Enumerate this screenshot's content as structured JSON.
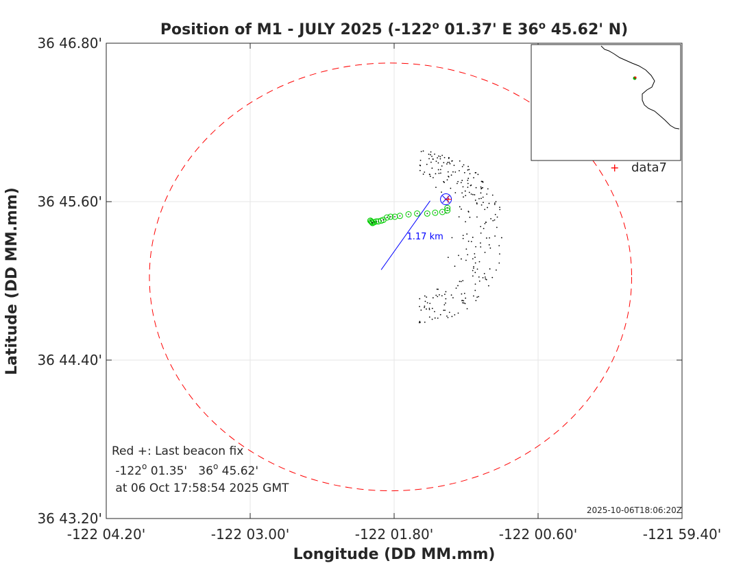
{
  "chart_data": {
    "type": "scatter",
    "title_main": "Position of M1 - JULY 2025 (-122",
    "title_lon_min": " 01.37' E  36",
    "title_lat_min": " 45.62' N)",
    "degree_mark": "o",
    "xlabel": "Longitude (DD MM.mm)",
    "ylabel": "Latitude (DD MM.mm)",
    "xlim": [
      -122.07,
      -121.99
    ],
    "ylim": [
      36.72,
      36.78
    ],
    "grid": true,
    "x_ticks": [
      {
        "value": -122.07,
        "label": "-122 04.20'"
      },
      {
        "value": -122.05,
        "label": "-122 03.00'"
      },
      {
        "value": -122.03,
        "label": "-122 01.80'"
      },
      {
        "value": -122.01,
        "label": "-122 00.60'"
      },
      {
        "value": -121.99,
        "label": "-121 59.40'"
      }
    ],
    "y_ticks": [
      {
        "value": 36.72,
        "label": "36 43.20'"
      },
      {
        "value": 36.74,
        "label": "36 44.40'"
      },
      {
        "value": 36.76,
        "label": "36 45.60'"
      },
      {
        "value": 36.78,
        "label": "36 46.80'"
      }
    ],
    "watch_circle": {
      "center": [
        -122.0305,
        36.7505
      ],
      "radius_lon": 0.0335,
      "radius_lat": 0.027,
      "color": "#ff0000",
      "style": "dashed"
    },
    "anchor_line": {
      "from": [
        -122.0318,
        36.7514
      ],
      "to": [
        -122.025,
        36.7601
      ],
      "color": "#0000ff",
      "label": "1.17 km"
    },
    "nominal_position": {
      "lon": -122.0228,
      "lat": 36.7603,
      "marker": "circle-x",
      "color": "#0000ff"
    },
    "last_fix": {
      "lon": -122.0225,
      "lat": 36.7603,
      "marker": "+",
      "color": "#ff0000"
    },
    "green_track": {
      "color": "#00cc00",
      "points": [
        [
          -122.0333,
          36.7576
        ],
        [
          -122.0332,
          36.7575
        ],
        [
          -122.0331,
          36.7574
        ],
        [
          -122.033,
          36.7573
        ],
        [
          -122.0328,
          36.7574
        ],
        [
          -122.0325,
          36.7575
        ],
        [
          -122.0322,
          36.7575
        ],
        [
          -122.0318,
          36.7576
        ],
        [
          -122.0315,
          36.7577
        ],
        [
          -122.031,
          36.758
        ],
        [
          -122.0305,
          36.7581
        ],
        [
          -122.0299,
          36.7581
        ],
        [
          -122.0292,
          36.7582
        ],
        [
          -122.028,
          36.7584
        ],
        [
          -122.0268,
          36.7585
        ],
        [
          -122.0254,
          36.7585
        ],
        [
          -122.0243,
          36.7586
        ],
        [
          -122.0233,
          36.7587
        ],
        [
          -122.0226,
          36.7589
        ],
        [
          -122.0226,
          36.7592
        ]
      ]
    },
    "black_positions": {
      "color": "#000000",
      "arc": {
        "center": [
          -122.0265,
          36.7555
        ],
        "radius_lon": 0.0115,
        "radius_lat": 0.0107,
        "start_deg": -90,
        "end_deg": 90
      }
    },
    "annotation_lines": [
      "Red +: Last beacon fix",
      " -122",
      " 01.35'   36",
      " 45.62'",
      " at 06 Oct 17:58:54 2025 GMT"
    ],
    "timestamp": "2025-10-06T18:06:20Z",
    "legend": {
      "entry": "data7",
      "marker": "+",
      "color": "#ff0000",
      "placement": "top-right"
    },
    "inset_map": {
      "placement": "top-right",
      "coastline_color": "#000000",
      "marker_colors": [
        "#00aa00",
        "#ff0000"
      ]
    }
  }
}
